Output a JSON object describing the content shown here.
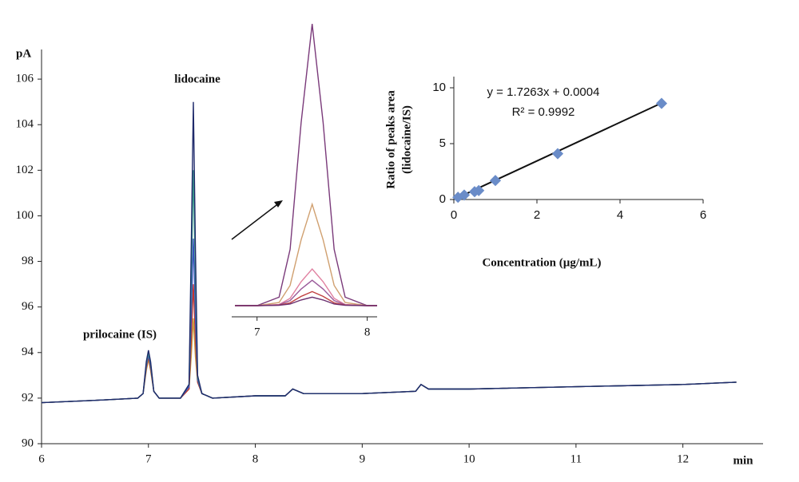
{
  "chart_data": [
    {
      "type": "line",
      "ylabel": "pA",
      "xlabel": "min",
      "annotations": [
        "lidocaine",
        "prilocaine (IS)"
      ],
      "xlim": [
        6,
        12.75
      ],
      "xticks": [
        6,
        7,
        8,
        9,
        10,
        11,
        12
      ],
      "ylim": [
        90,
        107.3
      ],
      "yticks": [
        90,
        92,
        94,
        96,
        98,
        100,
        102,
        104,
        106
      ],
      "x": [
        6,
        6.5,
        6.9,
        6.95,
        6.98,
        7.0,
        7.02,
        7.05,
        7.1,
        7.3,
        7.38,
        7.4,
        7.42,
        7.44,
        7.46,
        7.5,
        7.6,
        8.0,
        8.28,
        8.35,
        8.45,
        9,
        9.5,
        9.55,
        9.62,
        10,
        11,
        12,
        12.5
      ],
      "series": [
        {
          "color": "#c8a040",
          "values": [
            91.8,
            91.9,
            92.0,
            92.2,
            93.2,
            93.7,
            93.2,
            92.3,
            92.0,
            92.0,
            92.4,
            93.8,
            95.5,
            93.8,
            92.7,
            92.2,
            92.0,
            92.1,
            92.1,
            92.4,
            92.2,
            92.2,
            92.3,
            92.6,
            92.4,
            92.4,
            92.5,
            92.6,
            92.7
          ]
        },
        {
          "color": "#c0392b",
          "values": [
            91.8,
            91.9,
            92.0,
            92.2,
            93.3,
            93.8,
            93.3,
            92.3,
            92.0,
            92.0,
            92.4,
            94.5,
            97.0,
            94.5,
            92.7,
            92.2,
            92.0,
            92.1,
            92.1,
            92.4,
            92.2,
            92.2,
            92.3,
            92.6,
            92.4,
            92.4,
            92.5,
            92.6,
            92.7
          ]
        },
        {
          "color": "#3b4fbf",
          "values": [
            91.8,
            91.9,
            92.0,
            92.2,
            93.4,
            93.9,
            93.4,
            92.3,
            92.0,
            92.0,
            92.5,
            95.5,
            99.0,
            95.5,
            92.8,
            92.2,
            92.0,
            92.1,
            92.1,
            92.4,
            92.2,
            92.2,
            92.3,
            92.6,
            92.4,
            92.4,
            92.5,
            92.6,
            92.7
          ]
        },
        {
          "color": "#3a9a8a",
          "values": [
            91.8,
            91.9,
            92.0,
            92.2,
            93.5,
            94.0,
            93.5,
            92.3,
            92.0,
            92.0,
            92.6,
            97.0,
            102.0,
            97.0,
            92.9,
            92.2,
            92.0,
            92.1,
            92.1,
            92.4,
            92.2,
            92.2,
            92.3,
            92.6,
            92.4,
            92.4,
            92.5,
            92.6,
            92.7
          ]
        },
        {
          "color": "#1f2a6b",
          "values": [
            91.8,
            91.9,
            92.0,
            92.2,
            93.6,
            94.1,
            93.6,
            92.3,
            92.0,
            92.0,
            92.6,
            98.5,
            105.0,
            98.5,
            93.0,
            92.2,
            92.0,
            92.1,
            92.1,
            92.4,
            92.2,
            92.2,
            92.3,
            92.6,
            92.4,
            92.4,
            92.5,
            92.6,
            92.7
          ]
        }
      ]
    },
    {
      "type": "line",
      "xlim": [
        6.77,
        8.09
      ],
      "xticks": [
        7,
        8
      ],
      "ylim": [
        0,
        100
      ],
      "x": [
        6.8,
        7.0,
        7.2,
        7.3,
        7.4,
        7.5,
        7.6,
        7.7,
        7.8,
        8.0,
        8.09
      ],
      "series": [
        {
          "color": "#7a3a7a",
          "values": [
            0,
            0,
            3,
            20,
            65,
            100,
            65,
            20,
            3,
            0,
            0
          ]
        },
        {
          "color": "#d0a070",
          "values": [
            0,
            0,
            1.1,
            7.2,
            23.4,
            36,
            23.4,
            7.2,
            1.1,
            0,
            0
          ]
        },
        {
          "color": "#e080a0",
          "values": [
            0,
            0,
            0.4,
            2.6,
            8.5,
            13,
            8.5,
            2.6,
            0.4,
            0,
            0
          ]
        },
        {
          "color": "#9a5a9a",
          "values": [
            0,
            0,
            0.3,
            1.8,
            5.9,
            9,
            5.9,
            1.8,
            0.3,
            0,
            0
          ]
        },
        {
          "color": "#c04040",
          "values": [
            0,
            0,
            0.2,
            1,
            3.3,
            5,
            3.3,
            1,
            0.2,
            0,
            0
          ]
        },
        {
          "color": "#6a3070",
          "values": [
            0,
            0,
            0.1,
            0.6,
            2,
            3,
            2,
            0.6,
            0.1,
            0,
            0
          ]
        }
      ]
    },
    {
      "type": "scatter",
      "xlabel": "Concentration (µg/mL)",
      "ylabel": [
        "Ratio of peaks area",
        "(lidocaine/IS)"
      ],
      "xlim": [
        0,
        6
      ],
      "xticks": [
        0,
        2,
        4,
        6
      ],
      "ylim": [
        0,
        11
      ],
      "yticks": [
        0,
        5,
        10
      ],
      "color": "#6a8cc8",
      "x": [
        0.1,
        0.25,
        0.5,
        0.6,
        1,
        2.5,
        5
      ],
      "values": [
        0.2,
        0.4,
        0.7,
        0.8,
        1.7,
        4.1,
        8.6
      ],
      "trendline": {
        "equation": "y = 1.7263x + 0.0004",
        "r2": "R² = 0.9992",
        "slope": 1.7263,
        "intercept": 0.0004
      }
    }
  ]
}
